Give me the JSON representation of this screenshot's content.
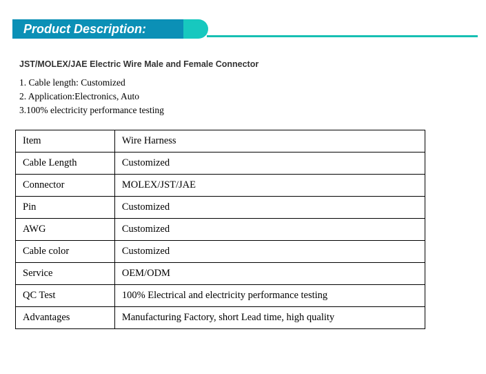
{
  "header": {
    "title": "Product Description:",
    "blue_color": "#0b90b6",
    "teal_color": "#17c8bf",
    "line_color": "#16bfb3"
  },
  "subtitle": "JST/MOLEX/JAE Electric Wire Male and Female Connector",
  "bullets": [
    "1. Cable length: Customized",
    "2. Application:Electronics, Auto",
    "3.100% electricity performance testing"
  ],
  "table": {
    "rows": [
      {
        "label": "Item",
        "value": "Wire Harness"
      },
      {
        "label": "Cable Length",
        "value": "Customized"
      },
      {
        "label": "Connector",
        "value": "MOLEX/JST/JAE"
      },
      {
        "label": "Pin",
        "value": "Customized"
      },
      {
        "label": "AWG",
        "value": "Customized"
      },
      {
        "label": "Cable color",
        "value": "Customized"
      },
      {
        "label": "Service",
        "value": "OEM/ODM"
      },
      {
        "label": "QC Test",
        "value": "100% Electrical and electricity performance testing"
      },
      {
        "label": "Advantages",
        "value": "Manufacturing Factory, short Lead time, high quality"
      }
    ]
  }
}
